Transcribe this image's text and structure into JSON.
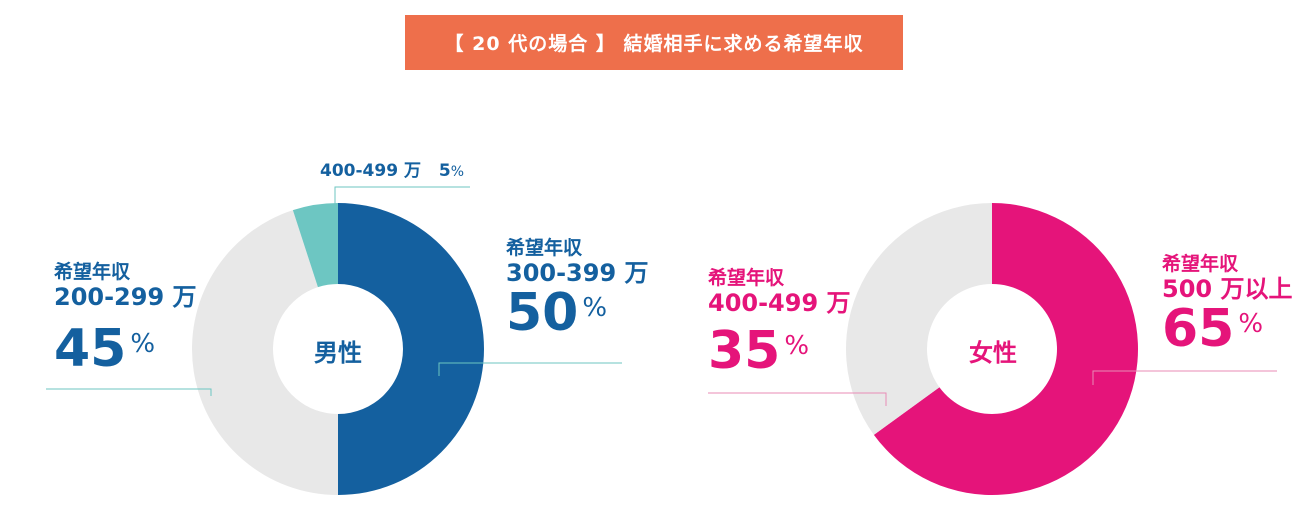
{
  "title": "【 20 代の場合 】 結婚相手に求める希望年収",
  "colors": {
    "banner": "#EE6F4B",
    "male_main": "#14609F",
    "male_accent": "#6DC6C2",
    "rest": "#E8E8E8",
    "female_main": "#E5147A",
    "male_leader": "#6DC6C2",
    "female_leader": "#E88BB6"
  },
  "chart_data": [
    {
      "type": "pie",
      "center_label": "男性",
      "slices": [
        {
          "caption": "希望年収",
          "range": "300-399 万",
          "value": 50,
          "pct_text": "50",
          "unit": "%"
        },
        {
          "caption": "希望年収",
          "range": "200-299 万",
          "value": 45,
          "pct_text": "45",
          "unit": "%"
        },
        {
          "caption": "",
          "range": "400-499 万",
          "value": 5,
          "pct_text": "5",
          "unit": "%"
        }
      ]
    },
    {
      "type": "pie",
      "center_label": "女性",
      "slices": [
        {
          "caption": "希望年収",
          "range": "500 万以上",
          "value": 65,
          "pct_text": "65",
          "unit": "%"
        },
        {
          "caption": "希望年収",
          "range": "400-499 万",
          "value": 35,
          "pct_text": "35",
          "unit": "%"
        }
      ]
    }
  ]
}
